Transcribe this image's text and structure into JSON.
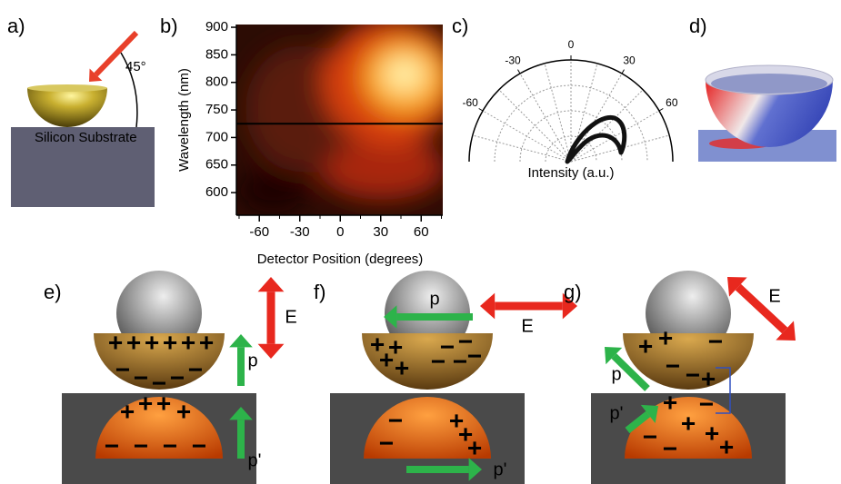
{
  "figure": {
    "a": {
      "label": "a)",
      "angle": "45°",
      "substrate": "Silicon Substrate"
    },
    "b": {
      "label": "b)",
      "y_label": "Wavelength (nm)",
      "x_label": "Detector Position (degrees)",
      "yticks": [
        600,
        650,
        700,
        750,
        800,
        850,
        900
      ],
      "xticks": [
        -60,
        -30,
        0,
        30,
        60
      ],
      "ylim": [
        559,
        905
      ],
      "xlim": [
        -77,
        76
      ],
      "cut": 725
    },
    "c": {
      "label": "c)",
      "angle_ticks": [
        -60,
        -30,
        0,
        30,
        60
      ],
      "radial_label": "Intensity (a.u.)"
    },
    "d": {
      "label": "d)"
    },
    "e": {
      "label": "e)",
      "field": "E",
      "dipole": "p",
      "image_dipole": "p'"
    },
    "f": {
      "label": "f)",
      "field": "E",
      "dipole": "p",
      "image_dipole": "p'"
    },
    "g": {
      "label": "g)",
      "field": "E",
      "dipole": "p",
      "image_dipole": "p'"
    },
    "charge_symbols": {
      "plus": "+",
      "minus": "−"
    }
  }
}
